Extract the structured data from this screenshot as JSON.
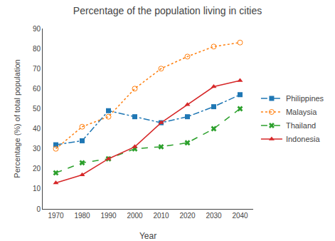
{
  "chart_data": {
    "type": "line",
    "title": "Percentage of the population living in cities",
    "x_label": "Year",
    "y_label": "Percentage (%) of total population",
    "x": [
      1970,
      1980,
      1990,
      2000,
      2010,
      2020,
      2030,
      2040
    ],
    "series": [
      {
        "name": "Philippines",
        "values": [
          32,
          34,
          49,
          46,
          43,
          46,
          51,
          57
        ],
        "marker": "square",
        "line_style": "dashdot"
      },
      {
        "name": "Malaysia",
        "values": [
          30,
          41,
          46,
          60,
          70,
          76,
          81,
          83
        ],
        "marker": "circle-open",
        "line_style": "dot"
      },
      {
        "name": "Thailand",
        "values": [
          18,
          23,
          25,
          30,
          31,
          33,
          40,
          50
        ],
        "marker": "x",
        "line_style": "dash"
      },
      {
        "name": "Indonesia",
        "values": [
          13,
          17,
          25,
          31,
          43,
          52,
          61,
          64
        ],
        "marker": "triangle-up",
        "line_style": "solid"
      }
    ],
    "xlim": [
      1965,
      2045
    ],
    "xticks": [
      1970,
      1980,
      1990,
      2000,
      2010,
      2020,
      2030,
      2040
    ],
    "ylim": [
      0,
      90
    ],
    "yticks": [
      0,
      10,
      20,
      30,
      40,
      50,
      60,
      70,
      80,
      90
    ],
    "grid": false,
    "legend": "right"
  }
}
